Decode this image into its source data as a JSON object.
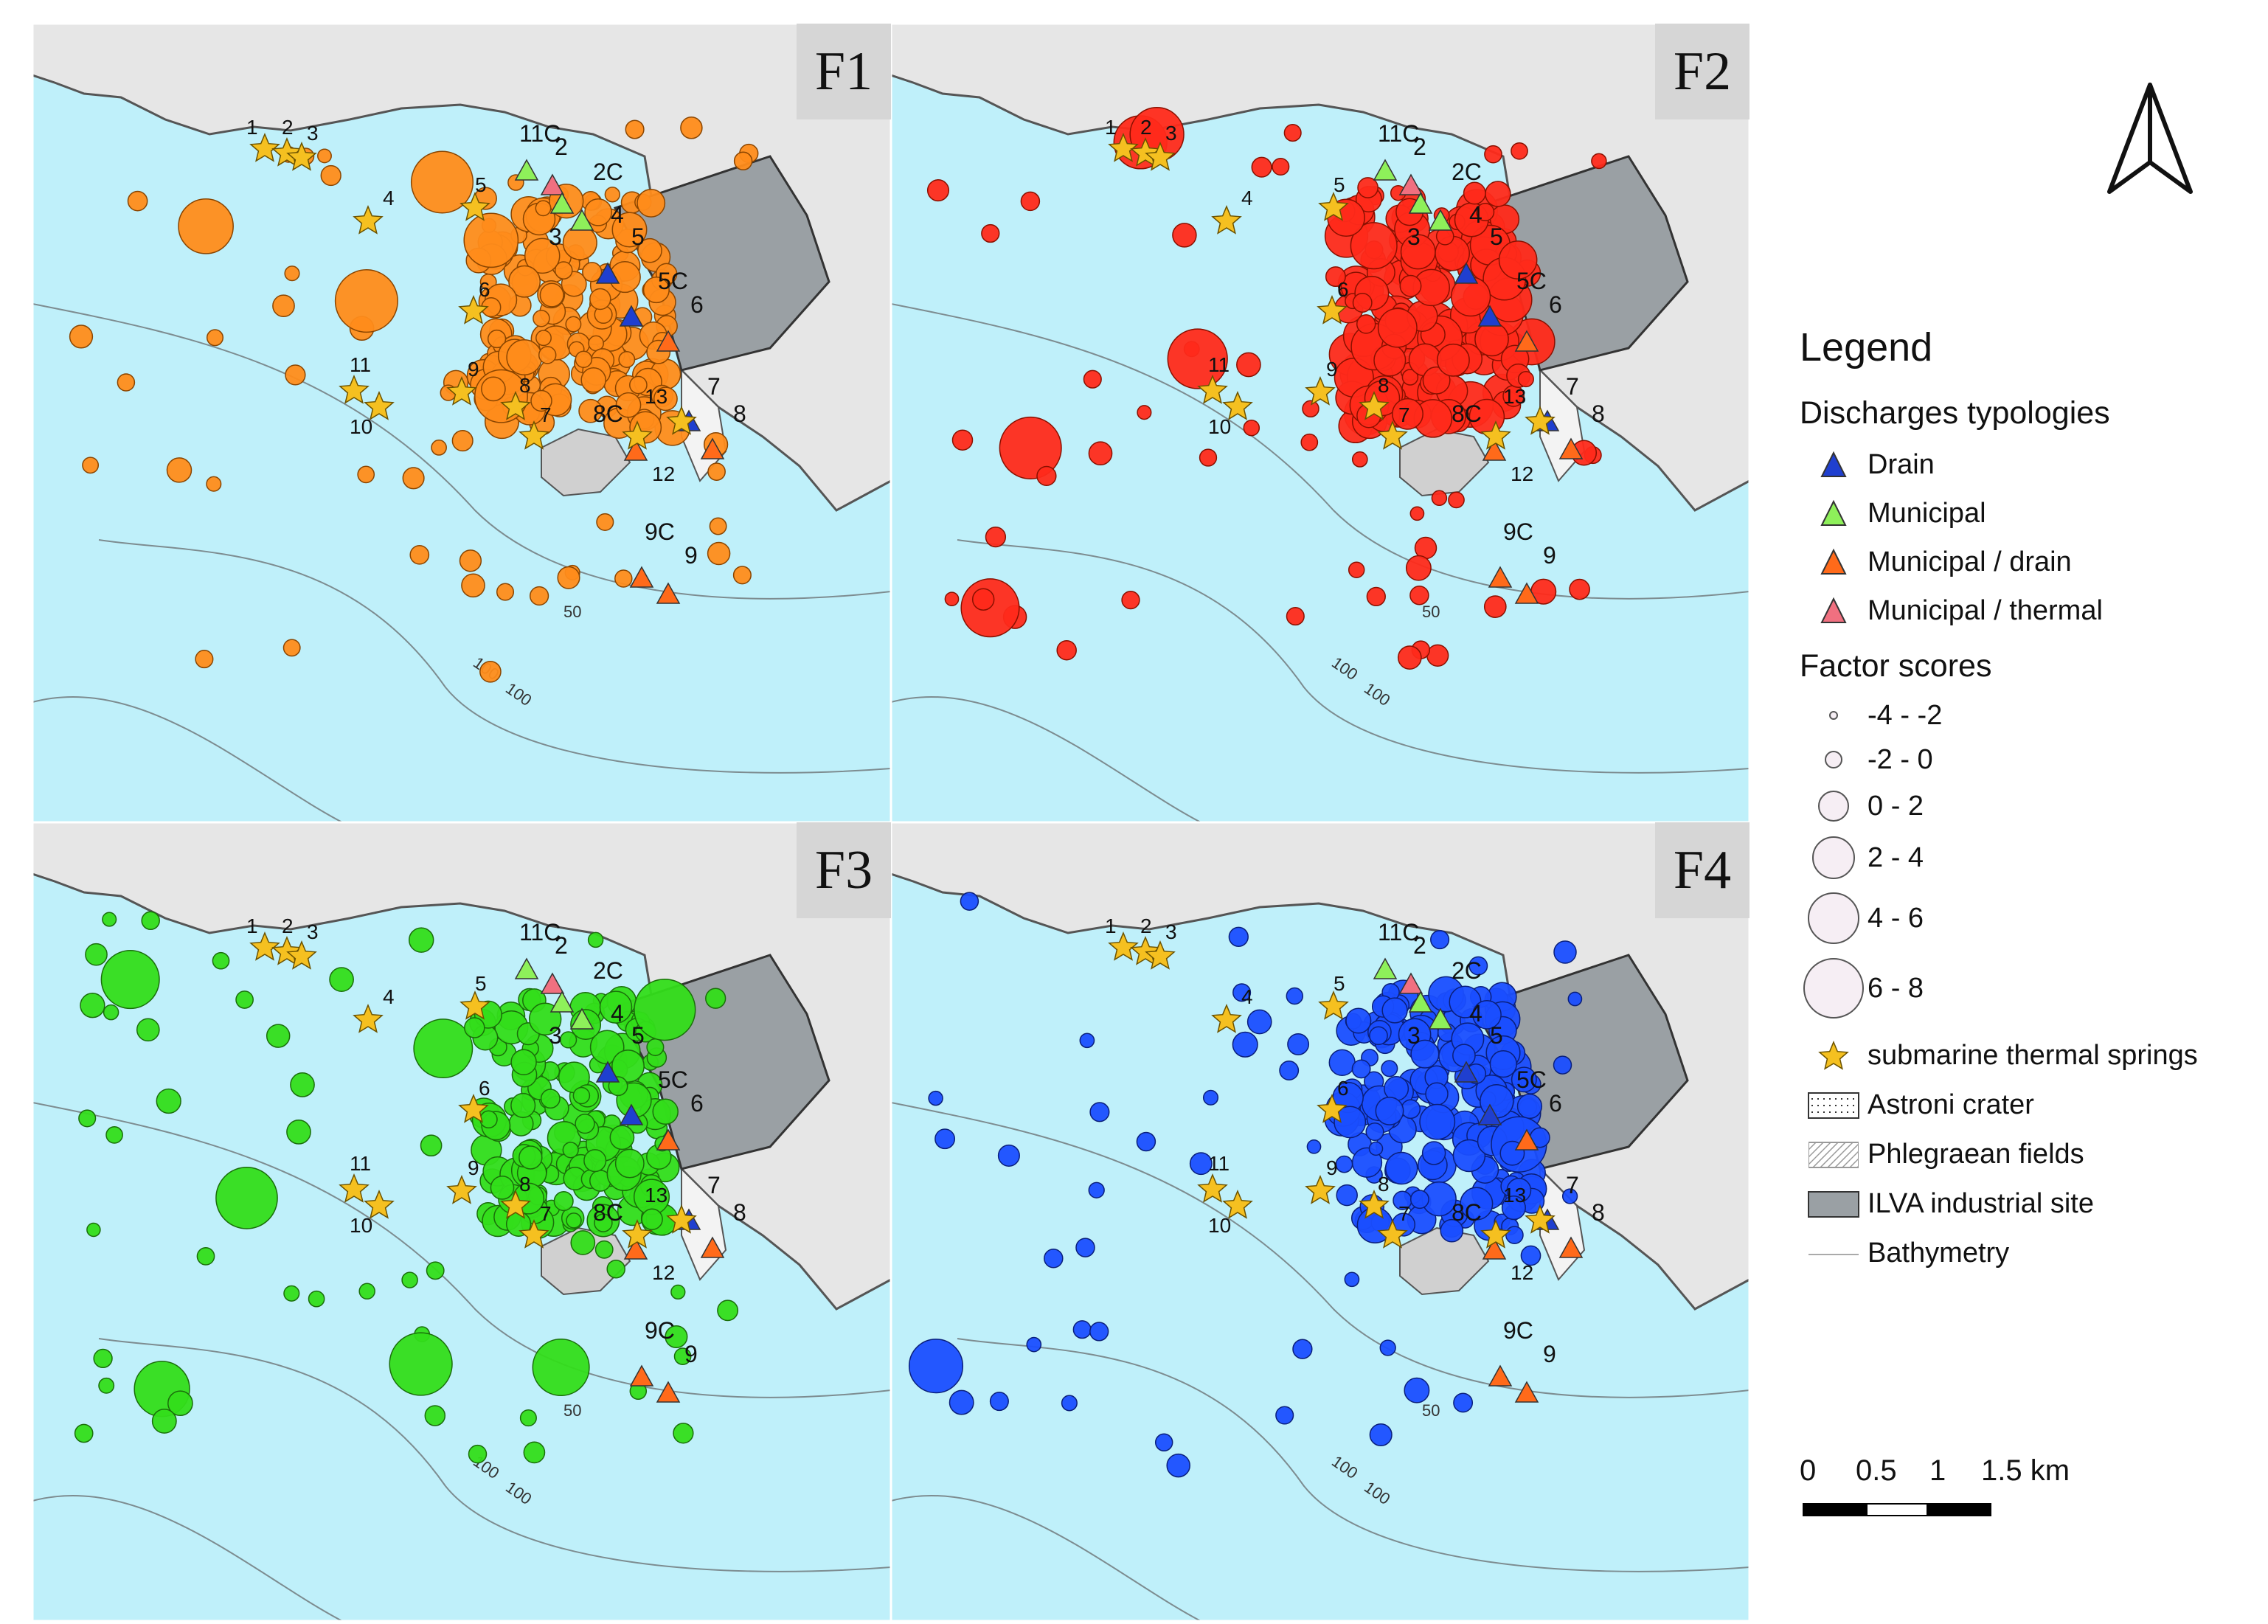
{
  "panels": [
    {
      "id": "F1",
      "title": "F1",
      "color": "#ff8c1a",
      "stroke": "#8a4500"
    },
    {
      "id": "F2",
      "title": "F2",
      "color": "#ff2a1a",
      "stroke": "#8a1000"
    },
    {
      "id": "F3",
      "title": "F3",
      "color": "#33dd1a",
      "stroke": "#1a6e0a"
    },
    {
      "id": "F4",
      "title": "F4",
      "color": "#1a4eff",
      "stroke": "#0a1f7a"
    }
  ],
  "colors": {
    "sea": "#bff0fa",
    "land": "#e6e6e6",
    "ilva": "#9aa0a4",
    "drain": "#1f3fcf",
    "municipal": "#8ef05a",
    "municipal_drain": "#ff6a1a",
    "municipal_thermal": "#f07080",
    "star": "#f5c020"
  },
  "map_labels": {
    "springs": [
      "1",
      "2",
      "3",
      "4",
      "5",
      "6",
      "7",
      "8",
      "9",
      "10",
      "11",
      "12",
      "13"
    ],
    "discharges": [
      "11C",
      "2",
      "2C",
      "3",
      "4",
      "5",
      "5C",
      "6",
      "7",
      "8",
      "8C",
      "9C",
      "9"
    ],
    "bathymetry": [
      "50",
      "100",
      "100"
    ]
  },
  "legend": {
    "title": "Legend",
    "discharges_title": "Discharges typologies",
    "discharges": [
      {
        "label": "Drain",
        "icon": "drain-triangle-icon",
        "color": "#1f3fcf"
      },
      {
        "label": "Municipal",
        "icon": "municipal-triangle-icon",
        "color": "#8ef05a"
      },
      {
        "label": "Municipal / drain",
        "icon": "municipal-drain-triangle-icon",
        "color": "#ff6a1a"
      },
      {
        "label": "Municipal / thermal",
        "icon": "municipal-thermal-triangle-icon",
        "color": "#f07080"
      }
    ],
    "scores_title": "Factor scores",
    "scores": [
      {
        "label": "-4 - -2"
      },
      {
        "label": "-2 - 0"
      },
      {
        "label": "0 - 2"
      },
      {
        "label": "2 - 4"
      },
      {
        "label": "4 - 6"
      },
      {
        "label": "6 - 8"
      }
    ],
    "others": [
      {
        "label": "submarine thermal springs",
        "icon": "star-icon"
      },
      {
        "label": "Astroni crater",
        "icon": "dotted-box-icon"
      },
      {
        "label": "Phlegraean fields",
        "icon": "hatched-box-icon"
      },
      {
        "label": "ILVA industrial site",
        "icon": "gray-box-icon"
      },
      {
        "label": "Bathymetry",
        "icon": "gray-line-icon"
      }
    ]
  },
  "scale_bar": {
    "ticks": [
      "0",
      "0.5",
      "1",
      "1.5 km"
    ]
  }
}
